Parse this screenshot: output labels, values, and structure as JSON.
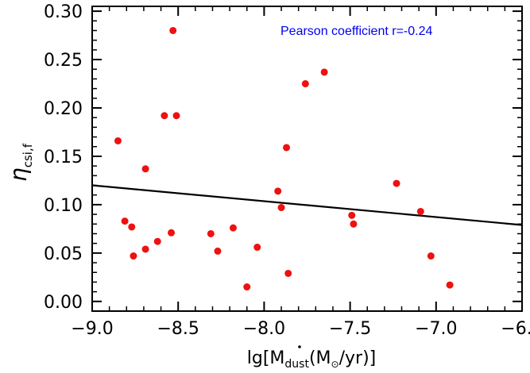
{
  "chart_data": {
    "type": "scatter",
    "title": "",
    "xlabel": {
      "prefix": "lg[",
      "symbol": "M",
      "subscript": "dust",
      "unit_open": "(M",
      "sun_symbol": "⊙",
      "unit_close": "/yr)]"
    },
    "ylabel": {
      "symbol": "η",
      "subscript": "csi,f"
    },
    "xlim": [
      -9.0,
      -6.5
    ],
    "ylim": [
      -0.01,
      0.305
    ],
    "xticks": [
      -9.0,
      -8.5,
      -8.0,
      -7.5,
      -7.0,
      -6.5
    ],
    "xtick_labels": [
      "−9.0",
      "−8.5",
      "−8.0",
      "−7.5",
      "−7.0",
      "−6.5"
    ],
    "yticks": [
      0.0,
      0.05,
      0.1,
      0.15,
      0.2,
      0.25,
      0.3
    ],
    "ytick_labels": [
      "0.00",
      "0.05",
      "0.10",
      "0.15",
      "0.20",
      "0.25",
      "0.30"
    ],
    "grid": false,
    "annotation": {
      "text": "Pearson coefficient r=-0.24",
      "color": "#0000ee"
    },
    "point_color": "#ee1111",
    "fit_line": {
      "x": [
        -9.0,
        -6.5
      ],
      "y": [
        0.12,
        0.079
      ],
      "color": "#000000"
    },
    "points": [
      {
        "x": -8.85,
        "y": 0.166
      },
      {
        "x": -8.81,
        "y": 0.083
      },
      {
        "x": -8.77,
        "y": 0.077
      },
      {
        "x": -8.76,
        "y": 0.047
      },
      {
        "x": -8.69,
        "y": 0.137
      },
      {
        "x": -8.69,
        "y": 0.054
      },
      {
        "x": -8.62,
        "y": 0.062
      },
      {
        "x": -8.58,
        "y": 0.192
      },
      {
        "x": -8.54,
        "y": 0.071
      },
      {
        "x": -8.53,
        "y": 0.28
      },
      {
        "x": -8.51,
        "y": 0.192
      },
      {
        "x": -8.31,
        "y": 0.07
      },
      {
        "x": -8.27,
        "y": 0.052
      },
      {
        "x": -8.18,
        "y": 0.076
      },
      {
        "x": -8.1,
        "y": 0.015
      },
      {
        "x": -8.04,
        "y": 0.056
      },
      {
        "x": -7.92,
        "y": 0.114
      },
      {
        "x": -7.9,
        "y": 0.097
      },
      {
        "x": -7.87,
        "y": 0.159
      },
      {
        "x": -7.86,
        "y": 0.029
      },
      {
        "x": -7.76,
        "y": 0.225
      },
      {
        "x": -7.65,
        "y": 0.237
      },
      {
        "x": -7.49,
        "y": 0.089
      },
      {
        "x": -7.48,
        "y": 0.08
      },
      {
        "x": -7.23,
        "y": 0.122
      },
      {
        "x": -7.09,
        "y": 0.093
      },
      {
        "x": -7.03,
        "y": 0.047
      },
      {
        "x": -6.92,
        "y": 0.017
      }
    ]
  }
}
